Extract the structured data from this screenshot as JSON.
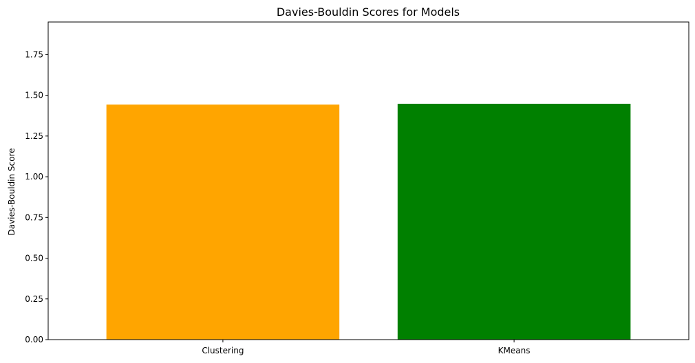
{
  "chart_data": {
    "type": "bar",
    "title": "Davies-Bouldin Scores for Models",
    "xlabel": "",
    "ylabel": "Davies-Bouldin Score",
    "categories": [
      "Clustering",
      "KMeans"
    ],
    "values": [
      1.443,
      1.448
    ],
    "colors": [
      "#ffa500",
      "#008000"
    ],
    "ylim": [
      0,
      1.95
    ],
    "yticks": [
      0.0,
      0.25,
      0.5,
      0.75,
      1.0,
      1.25,
      1.5,
      1.75
    ],
    "ytick_labels": [
      "0.00",
      "0.25",
      "0.50",
      "0.75",
      "1.00",
      "1.25",
      "1.50",
      "1.75"
    ],
    "grid": false,
    "legend": "none"
  }
}
